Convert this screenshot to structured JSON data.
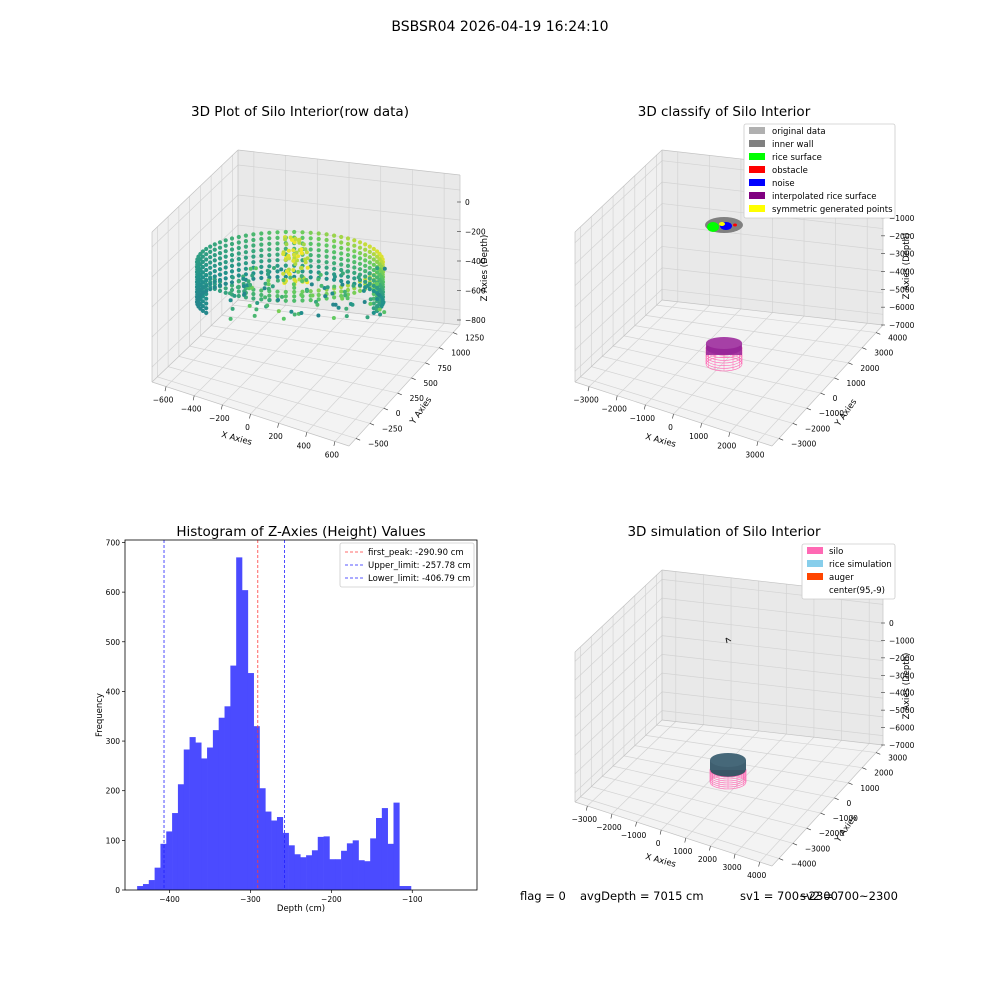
{
  "figure": {
    "suptitle": "BSBSR04 2026-04-19 16:24:10",
    "footer": {
      "flag": "flag = 0",
      "avg_depth": "avgDepth = 7015 cm",
      "sv1": "sv1 = 700~2300",
      "sv2": "sv2 = 700~2300"
    }
  },
  "colors": {
    "histogram": "#4b4bff",
    "first_peak": "#ff3b3b",
    "limits": "#2020ff",
    "original_data": "#b0b0b0",
    "inner_wall": "#808080",
    "rice_surface": "#00ff00",
    "obstacle": "#ff0000",
    "noise": "#0000ff",
    "interpolated_rice_surface": "#800080",
    "symmetric_generated_points": "#ffff00",
    "silo": "#ff69b4",
    "rice_simulation": "#87ceeb",
    "auger": "#ff4500"
  },
  "chart_data": [
    {
      "type": "scatter3d",
      "title": "3D Plot of Silo Interior(row data)",
      "xlabel": "X Axies",
      "ylabel": "Y Axies",
      "zlabel": "Z Axies (Depth)",
      "x_ticks": [
        "−600",
        "−400",
        "−200",
        "0",
        "200",
        "400",
        "600"
      ],
      "y_ticks": [
        "−500",
        "−250",
        "0",
        "250",
        "500",
        "750",
        "1000",
        "1250"
      ],
      "z_ticks": [
        "0",
        "−200",
        "−400",
        "−600",
        "−800"
      ],
      "xlim": [
        -600,
        700
      ],
      "ylim": [
        -550,
        1300
      ],
      "zlim": [
        -900,
        0
      ],
      "colormap": "viridis"
    },
    {
      "type": "scatter3d",
      "title": "3D classify of Silo Interior",
      "xlabel": "X Axies",
      "ylabel": "Y Axies",
      "zlabel": "Z Axies (Depth)",
      "x_ticks": [
        "−3000",
        "−2000",
        "−1000",
        "0",
        "1000",
        "2000",
        "3000"
      ],
      "y_ticks": [
        "−3000",
        "−2000",
        "−1000",
        "0",
        "1000",
        "2000",
        "3000",
        "4000"
      ],
      "z_ticks": [
        "−1000",
        "−2000",
        "−3000",
        "−4000",
        "−5000",
        "−6000",
        "−7000"
      ],
      "legend": [
        "original data",
        "inner wall",
        "rice surface",
        "obstacle",
        "noise",
        "interpolated rice surface",
        "symmetric generated points"
      ],
      "legend_placement": "upper-right"
    },
    {
      "type": "bar",
      "title": "Histogram of Z-Axies (Height) Values",
      "xlabel": "Depth (cm)",
      "ylabel": "Frequency",
      "x_ticks": [
        -400,
        -300,
        -200,
        -100
      ],
      "x_tick_labels": [
        "−400",
        "−300",
        "−200",
        "−100"
      ],
      "y_ticks": [
        0,
        100,
        200,
        300,
        400,
        500,
        600,
        700
      ],
      "xlim": [
        -455,
        -20
      ],
      "ylim": [
        0,
        705
      ],
      "bin_width": 7.2,
      "bin_start": -440,
      "values": [
        8,
        12,
        20,
        45,
        93,
        118,
        155,
        213,
        283,
        308,
        297,
        265,
        287,
        322,
        347,
        370,
        452,
        670,
        604,
        437,
        330,
        205,
        158,
        140,
        147,
        115,
        90,
        72,
        66,
        70,
        80,
        107,
        108,
        62,
        62,
        79,
        94,
        100,
        60,
        58,
        104,
        145,
        165,
        93,
        176,
        8,
        8
      ],
      "vlines": [
        {
          "x": -290.9,
          "label": "first_peak: -290.90 cm",
          "color": "#ff3b3b"
        },
        {
          "x": -257.78,
          "label": "Upper_limit: -257.78 cm",
          "color": "#2020ff"
        },
        {
          "x": -406.79,
          "label": "Lower_limit: -406.79 cm",
          "color": "#2020ff"
        }
      ],
      "legend_placement": "upper-right"
    },
    {
      "type": "scatter3d",
      "title": "3D simulation of Silo Interior",
      "xlabel": "X Axies",
      "ylabel": "Y Axies",
      "zlabel": "Z Axies (Depth)",
      "x_ticks": [
        "−3000",
        "−2000",
        "−1000",
        "0",
        "1000",
        "2000",
        "3000",
        "4000"
      ],
      "y_ticks": [
        "−4000",
        "−3000",
        "−2000",
        "−1000",
        "0",
        "1000",
        "2000",
        "3000"
      ],
      "z_ticks": [
        "0",
        "−1000",
        "−2000",
        "−3000",
        "−4000",
        "−5000",
        "−6000",
        "−7000"
      ],
      "legend": [
        "silo",
        "rice simulation",
        "auger",
        "center(95,-9)"
      ],
      "legend_placement": "upper-right"
    }
  ]
}
